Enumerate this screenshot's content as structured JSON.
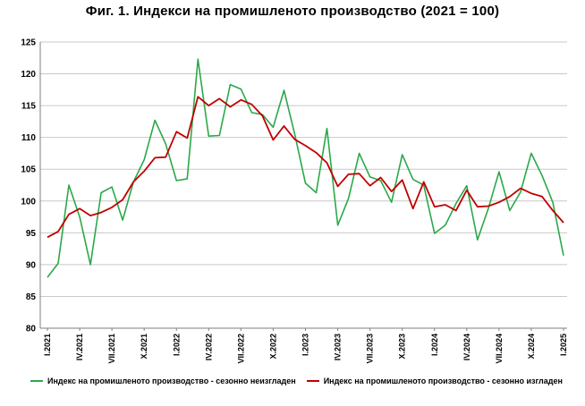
{
  "title": "Фиг. 1. Индекси на промишленото производство (2021 = 100)",
  "colors": {
    "non_adjusted": "#2ba84a",
    "adjusted": "#c00000",
    "grid": "#c8c8c8",
    "axis": "#7f7f7f"
  },
  "legend": [
    {
      "label": "Индекс на промишленото производство - сезонно  неизгладен",
      "series": 0
    },
    {
      "label": "Индекс на промишленото производство - сезонно изгладен",
      "series": 1
    }
  ],
  "chart_data": {
    "type": "line",
    "title": "Фиг. 1. Индекси на промишленото производство (2021 = 100)",
    "xlabel": "",
    "ylabel": "",
    "ylim": [
      80,
      125
    ],
    "yticks": [
      80,
      85,
      90,
      95,
      100,
      105,
      110,
      115,
      120,
      125
    ],
    "grid": true,
    "legend_position": "bottom",
    "x": [
      "I.2021",
      "II.2021",
      "III.2021",
      "IV.2021",
      "V.2021",
      "VI.2021",
      "VII.2021",
      "VIII.2021",
      "IX.2021",
      "X.2021",
      "XI.2021",
      "XII.2021",
      "I.2022",
      "II.2022",
      "III.2022",
      "IV.2022",
      "V.2022",
      "VI.2022",
      "VII.2022",
      "VIII.2022",
      "IX.2022",
      "X.2022",
      "XI.2022",
      "XII.2022",
      "I.2023",
      "II.2023",
      "III.2023",
      "IV.2023",
      "V.2023",
      "VI.2023",
      "VII.2023",
      "VIII.2023",
      "IX.2023",
      "X.2023",
      "XI.2023",
      "XII.2023",
      "I.2024",
      "II.2024",
      "III.2024",
      "IV.2024",
      "V.2024",
      "VI.2024",
      "VII.2024",
      "VIII.2024",
      "IX.2024",
      "X.2024",
      "XI.2024",
      "XII.2024",
      "I.2025"
    ],
    "x_tick_labels": [
      "I.2021",
      "IV.2021",
      "VII.2021",
      "X.2021",
      "I.2022",
      "IV.2022",
      "VII.2022",
      "X.2022",
      "I.2023",
      "IV.2023",
      "VII.2023",
      "X.2023",
      "I.2024",
      "IV.2024",
      "VII.2024",
      "X.2024",
      "I.2025"
    ],
    "series": [
      {
        "name": "Индекс на промишленото производство - сезонно  неизгладен",
        "values": [
          88.0,
          90.2,
          102.5,
          97.5,
          90.0,
          101.3,
          102.2,
          97.0,
          103.0,
          106.5,
          112.7,
          109.0,
          103.2,
          103.5,
          122.3,
          110.2,
          110.3,
          118.3,
          117.6,
          113.9,
          113.6,
          111.6,
          117.4,
          110.5,
          102.8,
          101.3,
          111.4,
          96.2,
          100.4,
          107.5,
          103.8,
          103.2,
          99.8,
          107.3,
          103.4,
          102.5,
          94.9,
          96.2,
          99.6,
          102.4,
          93.9,
          98.8,
          104.6,
          98.5,
          101.4,
          107.5,
          104.0,
          99.8,
          91.4
        ]
      },
      {
        "name": "Индекс на промишленото производство - сезонно изгладен",
        "values": [
          94.3,
          95.2,
          97.9,
          98.8,
          97.7,
          98.2,
          99.0,
          100.2,
          103.0,
          104.7,
          106.8,
          106.9,
          110.9,
          109.9,
          116.4,
          115.0,
          116.1,
          114.8,
          115.9,
          115.2,
          113.4,
          109.6,
          111.8,
          109.7,
          108.7,
          107.6,
          106.0,
          102.3,
          104.2,
          104.3,
          102.4,
          103.7,
          101.5,
          103.3,
          98.8,
          103.0,
          99.1,
          99.4,
          98.5,
          101.7,
          99.1,
          99.2,
          99.8,
          100.7,
          102.0,
          101.2,
          100.7,
          98.5,
          96.6
        ]
      }
    ]
  }
}
